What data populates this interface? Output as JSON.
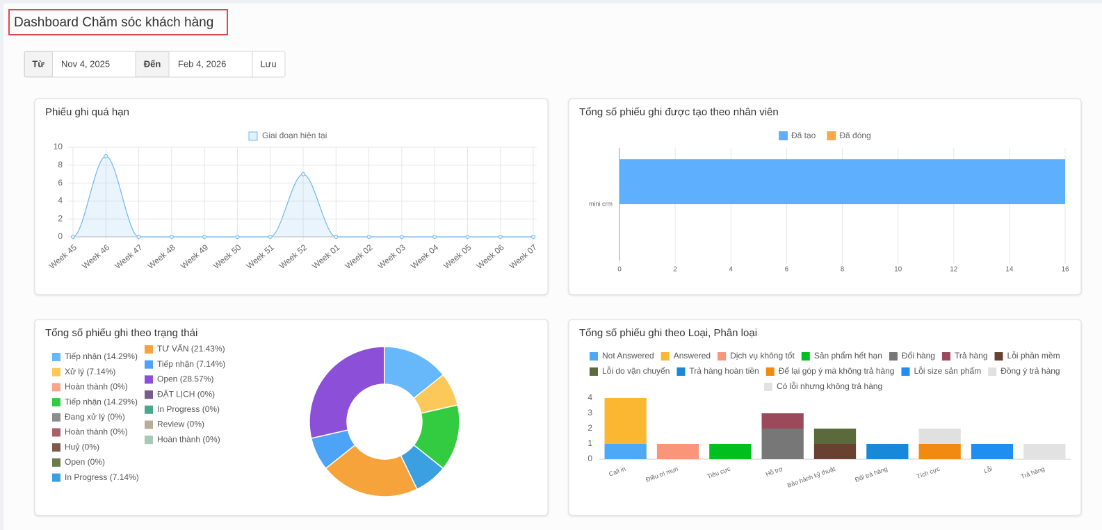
{
  "header": {
    "title": "Dashboard Chăm sóc khách hàng"
  },
  "filter": {
    "from_label": "Từ",
    "from": "Nov 4, 2025",
    "to_label": "Đến",
    "to": "Feb 4, 2026",
    "save": "Lưu"
  },
  "chart_data": [
    {
      "type": "area",
      "title": "Phiếu ghi quá hạn",
      "categories": [
        "Week 45",
        "Week 46",
        "Week 47",
        "Week 48",
        "Week 49",
        "Week 50",
        "Week 51",
        "Week 52",
        "Week 01",
        "Week 02",
        "Week 03",
        "Week 04",
        "Week 05",
        "Week 06",
        "Week 07"
      ],
      "series": [
        {
          "name": "Giai đoạn hiện tại",
          "color": "#6cb8ef",
          "values": [
            0,
            9,
            0,
            0,
            0,
            0,
            0,
            7,
            0,
            0,
            0,
            0,
            0,
            0,
            0
          ]
        }
      ],
      "ylim": [
        0,
        10
      ],
      "yticks": [
        0,
        2,
        4,
        6,
        8,
        10
      ],
      "grid": true
    },
    {
      "type": "hbar",
      "title": "Tổng số phiếu ghi được tạo theo nhân viên",
      "categories": [
        "mini crm"
      ],
      "series": [
        {
          "name": "Đã tạo",
          "color": "#5eb0ff",
          "values": [
            16
          ]
        },
        {
          "name": "Đã đóng",
          "color": "#f6a84a",
          "values": [
            0
          ]
        }
      ],
      "xlim": [
        0,
        16
      ],
      "xticks": [
        0,
        2,
        4,
        6,
        8,
        10,
        12,
        14,
        16
      ],
      "grid": true
    },
    {
      "type": "doughnut",
      "title": "Tổng số phiếu ghi theo trạng thái",
      "categories": [
        "Tiếp nhận (14.29%)",
        "Xử lý (7.14%)",
        "Hoàn thành (0%)",
        "Tiếp nhận (14.29%)",
        "Đang xử lý (0%)",
        "Hoàn thành (0%)",
        "Huỷ (0%)",
        "Open (0%)",
        "In Progress (7.14%)",
        "TƯ VẤN (21.43%)",
        "Tiếp nhận (7.14%)",
        "Open (28.57%)",
        "ĐẶT LỊCH (0%)",
        "In Progress (0%)",
        "Review (0%)",
        "Hoàn thành (0%)"
      ],
      "values": [
        14.29,
        7.14,
        0,
        14.29,
        0,
        0,
        0,
        0,
        7.14,
        21.43,
        7.14,
        28.57,
        0,
        0,
        0,
        0
      ],
      "colors": [
        "#66b8fa",
        "#fdc85a",
        "#f8a58a",
        "#33cc40",
        "#8c8c8c",
        "#a8606a",
        "#7a5a4a",
        "#6b7a4a",
        "#3aa0e0",
        "#f5a33a",
        "#4da3f5",
        "#8c4fd8",
        "#7a5a8c",
        "#4aa88a",
        "#b8ad9a",
        "#a8c8b8"
      ]
    },
    {
      "type": "stacked-bar",
      "title": "Tổng số phiếu ghi theo Loại, Phân loại",
      "categories": [
        "Call in",
        "Điều trị mụn",
        "Tiêu cực",
        "Hỗ trợ",
        "Bảo hành kỹ thuật",
        "Đổi trả hàng",
        "Tích cực",
        "Lỗi",
        "Trả hàng"
      ],
      "series": [
        {
          "name": "Not Answered",
          "color": "#4da8f5",
          "values": [
            1,
            0,
            0,
            0,
            0,
            0,
            0,
            0,
            0
          ]
        },
        {
          "name": "Answered",
          "color": "#fbb731",
          "values": [
            3,
            0,
            0,
            0,
            0,
            0,
            0,
            0,
            0
          ]
        },
        {
          "name": "Dịch vụ không tốt",
          "color": "#f9967a",
          "values": [
            0,
            1,
            0,
            0,
            0,
            0,
            0,
            0,
            0
          ]
        },
        {
          "name": "Sản phẩm hết hạn",
          "color": "#00c020",
          "values": [
            0,
            0,
            1,
            0,
            0,
            0,
            0,
            0,
            0
          ]
        },
        {
          "name": "Đổi hàng",
          "color": "#777777",
          "values": [
            0,
            0,
            0,
            2,
            0,
            0,
            0,
            0,
            0
          ]
        },
        {
          "name": "Trả hàng",
          "color": "#9a4a5a",
          "values": [
            0,
            0,
            0,
            1,
            0,
            0,
            0,
            0,
            0
          ]
        },
        {
          "name": "Lỗi phần mềm",
          "color": "#6a4030",
          "values": [
            0,
            0,
            0,
            0,
            1,
            0,
            0,
            0,
            0
          ]
        },
        {
          "name": "Lỗi do vận chuyển",
          "color": "#5a6a3a",
          "values": [
            0,
            0,
            0,
            0,
            1,
            0,
            0,
            0,
            0
          ]
        },
        {
          "name": "Trả hàng hoàn tiền",
          "color": "#1a88d8",
          "values": [
            0,
            0,
            0,
            0,
            0,
            1,
            0,
            0,
            0
          ]
        },
        {
          "name": "Để lại góp ý mà không trả hàng",
          "color": "#f08a10",
          "values": [
            0,
            0,
            0,
            0,
            0,
            0,
            1,
            0,
            0
          ]
        },
        {
          "name": "Lỗi size sản phẩm",
          "color": "#1e8ef0",
          "values": [
            0,
            0,
            0,
            0,
            0,
            0,
            0,
            1,
            0
          ]
        },
        {
          "name": "Đồng ý trả hàng",
          "color": "#e0e0e0",
          "values": [
            0,
            0,
            0,
            0,
            0,
            0,
            1,
            0,
            0
          ]
        },
        {
          "name": "Có lỗi nhưng không trả hàng",
          "color": "#e2e2e2",
          "values": [
            0,
            0,
            0,
            0,
            0,
            0,
            0,
            0,
            1
          ]
        }
      ],
      "ylim": [
        0,
        4
      ],
      "yticks": [
        0,
        1,
        2,
        3,
        4
      ],
      "grid": false
    }
  ]
}
